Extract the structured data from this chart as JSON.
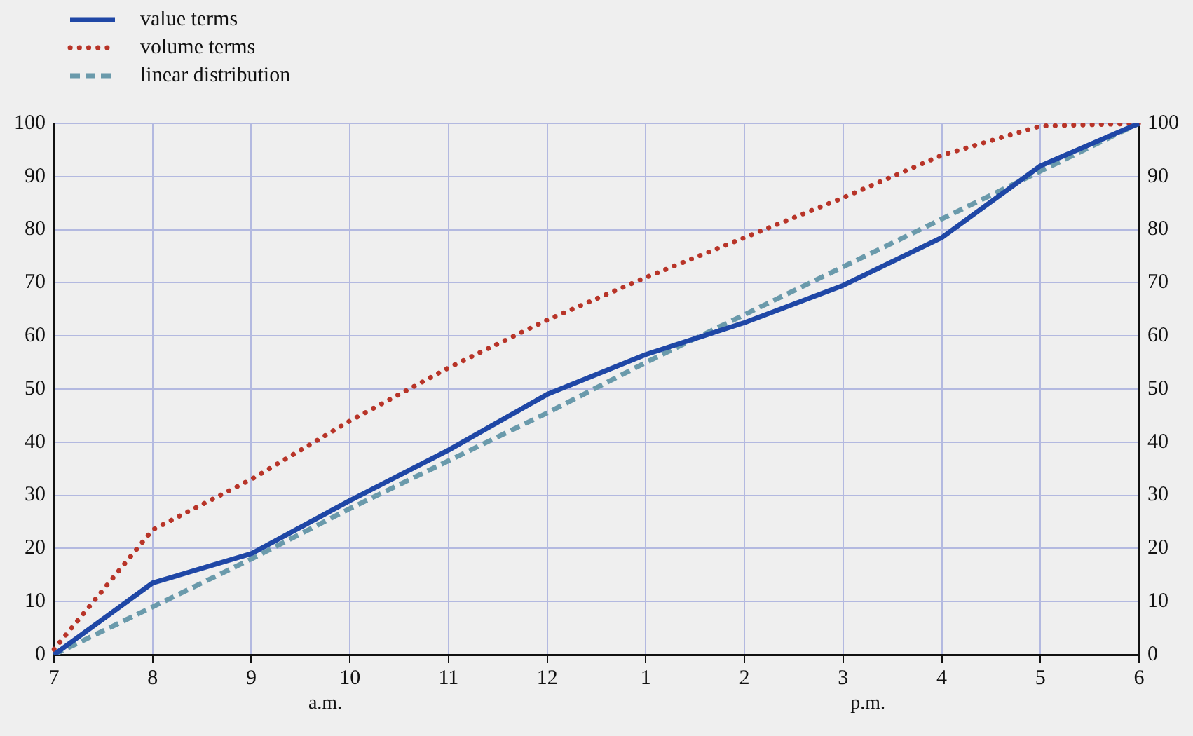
{
  "chart_data": {
    "type": "line",
    "categories": [
      "7",
      "8",
      "9",
      "10",
      "11",
      "12",
      "1",
      "2",
      "3",
      "4",
      "5",
      "6"
    ],
    "series": [
      {
        "name": "value terms",
        "color": "#1f47a6",
        "line_style": "solid",
        "values": [
          0,
          13.5,
          19,
          29,
          38.5,
          49,
          56.5,
          62.5,
          69.5,
          78.5,
          92,
          100
        ]
      },
      {
        "name": "volume terms",
        "color": "#b83428",
        "line_style": "dotted",
        "values": [
          1,
          23.5,
          33,
          44,
          54,
          63,
          71,
          78.5,
          86,
          94,
          99.5,
          100
        ]
      },
      {
        "name": "linear distribution",
        "color": "#6a9aab",
        "line_style": "dashed",
        "values": [
          0,
          9,
          18,
          27.5,
          36.5,
          45.5,
          55,
          64,
          73,
          82,
          91,
          100
        ]
      }
    ],
    "ylim": [
      0,
      100
    ],
    "yticks": [
      0,
      10,
      20,
      30,
      40,
      50,
      60,
      70,
      80,
      90,
      100
    ],
    "y2lim": [
      0,
      100
    ],
    "y2ticks": [
      0,
      10,
      20,
      30,
      40,
      50,
      60,
      70,
      80,
      90,
      100
    ],
    "annotations": [
      "a.m.",
      "p.m."
    ],
    "grid": true,
    "legend": "top left",
    "marker": "none"
  }
}
